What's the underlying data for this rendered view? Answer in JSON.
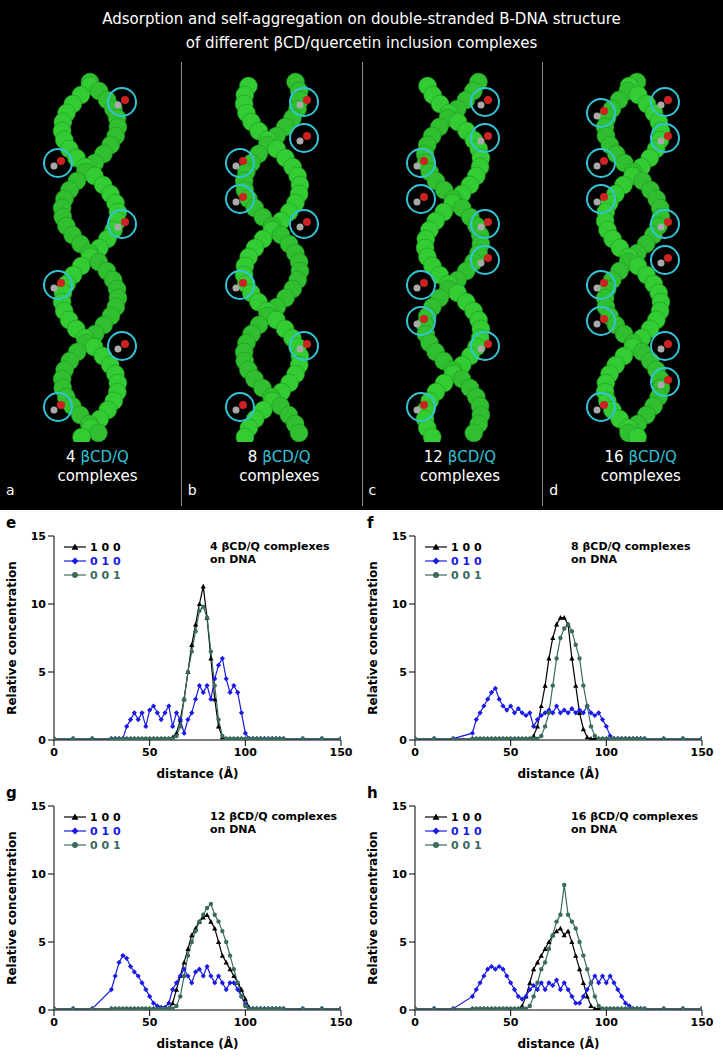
{
  "header": {
    "title": [
      "Adsorption and self-aggregation on double-stranded B-DNA structure",
      "of different βCD/quercetin inclusion complexes"
    ]
  },
  "panels": [
    {
      "letter": "a",
      "label": "4 βCD/Q complexes"
    },
    {
      "letter": "b",
      "label": "8 βCD/Q complexes"
    },
    {
      "letter": "c",
      "label": "12 βCD/Q complexes"
    },
    {
      "letter": "d",
      "label": "16 βCD/Q complexes"
    }
  ],
  "chart_data": [
    {
      "type": "line",
      "panel": "e",
      "title": "4 βCD/Q complexes on DNA",
      "x_label": "distance (Å)",
      "y_label": "Relative concentration",
      "xlim": [
        0,
        150
      ],
      "ylim": [
        0,
        15
      ],
      "xticks": [
        0,
        50,
        100,
        150
      ],
      "yticks": [
        0,
        5,
        10,
        15
      ],
      "grid": false,
      "legend": "top-left",
      "x": [
        0,
        10,
        20,
        30,
        32,
        34,
        36,
        38,
        40,
        42,
        44,
        46,
        48,
        50,
        52,
        54,
        56,
        58,
        60,
        62,
        64,
        66,
        68,
        70,
        72,
        74,
        76,
        78,
        80,
        82,
        84,
        86,
        88,
        90,
        92,
        94,
        96,
        98,
        100,
        102,
        104,
        106,
        108,
        110,
        112,
        114,
        116,
        118,
        120,
        130,
        140,
        150
      ],
      "series": [
        {
          "name": "1 0 0",
          "color": "#000000",
          "marker": "triangle",
          "values": [
            0.1,
            0.1,
            0.1,
            0.1,
            0.1,
            0.1,
            0.1,
            0.1,
            0.1,
            0.1,
            0.1,
            0.1,
            0.1,
            0.1,
            0.1,
            0.1,
            0.1,
            0.1,
            0.1,
            0.2,
            0.5,
            1.5,
            3,
            5,
            7,
            8.5,
            10,
            11.3,
            9,
            6,
            3,
            1,
            0.2,
            0.1,
            0.1,
            0.1,
            0.1,
            0.1,
            0.1,
            0.1,
            0.1,
            0.1,
            0.1,
            0.1,
            0.1,
            0.1,
            0.1,
            0.1,
            0.1,
            0.1,
            0.1,
            0.1
          ]
        },
        {
          "name": "0 1 0",
          "color": "#1a1ae6",
          "marker": "diamond",
          "values": [
            0.1,
            0.1,
            0.1,
            0.1,
            0.1,
            0.1,
            0.1,
            1,
            1.5,
            2,
            1.5,
            2,
            1,
            2.2,
            2.5,
            2,
            1.5,
            2,
            2.5,
            1,
            2,
            1.5,
            0.5,
            1.5,
            2,
            3,
            4,
            3.5,
            4,
            3,
            4.5,
            5.5,
            6,
            4.5,
            3.5,
            4,
            3.5,
            2,
            0.5,
            0.1,
            0.1,
            0.1,
            0.1,
            0.1,
            0.1,
            0.1,
            0.1,
            0.1,
            0.1,
            0.1,
            0.1,
            0.1
          ]
        },
        {
          "name": "0 0 1",
          "color": "#3a6b5e",
          "marker": "circle",
          "values": [
            0.1,
            0.1,
            0.1,
            0.1,
            0.1,
            0.1,
            0.1,
            0.1,
            0.1,
            0.1,
            0.1,
            0.1,
            0.1,
            0.1,
            0.1,
            0.1,
            0.1,
            0.1,
            0.1,
            0.1,
            0.3,
            1,
            3,
            5,
            6.5,
            8,
            9.5,
            9.8,
            9,
            6.5,
            4,
            1.5,
            0.3,
            0.1,
            0.1,
            0.1,
            0.1,
            0.1,
            0.1,
            0.1,
            0.1,
            0.1,
            0.1,
            0.1,
            0.1,
            0.1,
            0.1,
            0.1,
            0.1,
            0.1,
            0.1,
            0.1
          ]
        }
      ]
    },
    {
      "type": "line",
      "panel": "f",
      "title": "8 βCD/Q complexes on DNA",
      "x_label": "distance (Å)",
      "y_label": "Relative concentration",
      "xlim": [
        0,
        150
      ],
      "ylim": [
        0,
        15
      ],
      "xticks": [
        0,
        50,
        100,
        150
      ],
      "yticks": [
        0,
        5,
        10,
        15
      ],
      "grid": false,
      "legend": "top-left",
      "x": [
        0,
        10,
        20,
        30,
        32,
        34,
        36,
        38,
        40,
        42,
        44,
        46,
        48,
        50,
        52,
        54,
        56,
        58,
        60,
        62,
        64,
        66,
        68,
        70,
        72,
        74,
        76,
        78,
        80,
        82,
        84,
        86,
        88,
        90,
        92,
        94,
        96,
        98,
        100,
        102,
        104,
        106,
        108,
        110,
        112,
        114,
        116,
        118,
        120,
        130,
        140,
        150
      ],
      "series": [
        {
          "name": "1 0 0",
          "color": "#000000",
          "marker": "triangle",
          "values": [
            0.1,
            0.1,
            0.1,
            0.1,
            0.1,
            0.1,
            0.1,
            0.1,
            0.1,
            0.1,
            0.1,
            0.1,
            0.1,
            0.1,
            0.1,
            0.1,
            0.1,
            0.1,
            0.1,
            0.3,
            1,
            2.5,
            4,
            6,
            7.5,
            8.5,
            9,
            9,
            8.5,
            6,
            4,
            2,
            0.8,
            0.2,
            0.1,
            0.1,
            0.1,
            0.1,
            0.1,
            0.1,
            0.1,
            0.1,
            0.1,
            0.1,
            0.1,
            0.1,
            0.1,
            0.1,
            0.1,
            0.1,
            0.1,
            0.1
          ]
        },
        {
          "name": "0 1 0",
          "color": "#1a1ae6",
          "marker": "diamond",
          "values": [
            0.1,
            0.1,
            0.1,
            0.5,
            1.5,
            2,
            2.5,
            3,
            3.5,
            3.8,
            3,
            2.5,
            2.2,
            2.5,
            2,
            2.3,
            2,
            1.8,
            2,
            1,
            1.5,
            1.8,
            2,
            2.2,
            2,
            2.5,
            2,
            2.2,
            2,
            2.3,
            2,
            2.2,
            2,
            2.5,
            2,
            1.8,
            2,
            1.5,
            1,
            0.3,
            0.1,
            0.1,
            0.1,
            0.1,
            0.1,
            0.1,
            0.1,
            0.1,
            0.1,
            0.1,
            0.1,
            0.1
          ]
        },
        {
          "name": "0 0 1",
          "color": "#3a6b5e",
          "marker": "circle",
          "values": [
            0.1,
            0.1,
            0.1,
            0.1,
            0.1,
            0.1,
            0.1,
            0.1,
            0.1,
            0.1,
            0.1,
            0.1,
            0.1,
            0.1,
            0.1,
            0.1,
            0.1,
            0.1,
            0.1,
            0.1,
            0.1,
            0.3,
            1,
            2,
            4,
            6,
            7.5,
            8.2,
            8.5,
            8,
            7,
            6,
            4,
            2.5,
            1,
            0.3,
            0.1,
            0.1,
            0.1,
            0.1,
            0.1,
            0.1,
            0.1,
            0.1,
            0.1,
            0.1,
            0.1,
            0.1,
            0.1,
            0.1,
            0.1,
            0.1
          ]
        }
      ]
    },
    {
      "type": "line",
      "panel": "g",
      "title": "12 βCD/Q complexes on DNA",
      "x_label": "distance (Å)",
      "y_label": "Relative concentration",
      "xlim": [
        0,
        150
      ],
      "ylim": [
        0,
        15
      ],
      "xticks": [
        0,
        50,
        100,
        150
      ],
      "yticks": [
        0,
        5,
        10,
        15
      ],
      "grid": false,
      "legend": "top-left",
      "x": [
        0,
        10,
        20,
        30,
        32,
        34,
        36,
        38,
        40,
        42,
        44,
        46,
        48,
        50,
        52,
        54,
        56,
        58,
        60,
        62,
        64,
        66,
        68,
        70,
        72,
        74,
        76,
        78,
        80,
        82,
        84,
        86,
        88,
        90,
        92,
        94,
        96,
        98,
        100,
        102,
        104,
        106,
        108,
        110,
        112,
        114,
        116,
        118,
        120,
        130,
        140,
        150
      ],
      "series": [
        {
          "name": "1 0 0",
          "color": "#000000",
          "marker": "triangle",
          "values": [
            0.1,
            0.1,
            0.1,
            0.1,
            0.1,
            0.1,
            0.1,
            0.1,
            0.1,
            0.1,
            0.1,
            0.1,
            0.1,
            0.1,
            0.1,
            0.1,
            0.1,
            0.1,
            0.1,
            0.5,
            1.5,
            2.5,
            3.5,
            4.5,
            5.5,
            6,
            6.5,
            6.8,
            7,
            6.5,
            6,
            5,
            4,
            3.5,
            3,
            2.5,
            2,
            1.5,
            0.8,
            0.2,
            0.1,
            0.1,
            0.1,
            0.1,
            0.1,
            0.1,
            0.1,
            0.1,
            0.1,
            0.1,
            0.1,
            0.1
          ]
        },
        {
          "name": "0 1 0",
          "color": "#1a1ae6",
          "marker": "diamond",
          "values": [
            0.1,
            0.1,
            0.1,
            1.5,
            2.5,
            3.5,
            4,
            3.8,
            3.2,
            2.8,
            2.5,
            2,
            1.5,
            1,
            0.5,
            0.3,
            0.2,
            0.2,
            0.5,
            1.5,
            2,
            2.5,
            3,
            2.5,
            2,
            2.8,
            3,
            2.5,
            3.2,
            2.5,
            2,
            2.5,
            2,
            1.5,
            2,
            2,
            1.5,
            1,
            0.4,
            0.1,
            0.1,
            0.1,
            0.1,
            0.1,
            0.1,
            0.1,
            0.1,
            0.1,
            0.1,
            0.1,
            0.1,
            0.1
          ]
        },
        {
          "name": "0 0 1",
          "color": "#3a6b5e",
          "marker": "circle",
          "values": [
            0.1,
            0.1,
            0.1,
            0.1,
            0.1,
            0.1,
            0.1,
            0.1,
            0.1,
            0.1,
            0.1,
            0.1,
            0.1,
            0.1,
            0.1,
            0.1,
            0.1,
            0.1,
            0.1,
            0.1,
            0.3,
            1,
            2.5,
            4,
            5,
            5.8,
            6.5,
            7,
            7.5,
            7.8,
            7,
            6.5,
            5.8,
            5,
            4,
            3,
            2,
            1,
            0.3,
            0.1,
            0.1,
            0.1,
            0.1,
            0.1,
            0.1,
            0.1,
            0.1,
            0.1,
            0.1,
            0.1,
            0.1,
            0.1
          ]
        }
      ]
    },
    {
      "type": "line",
      "panel": "h",
      "title": "16 βCD/Q complexes on DNA",
      "x_label": "distance (Å)",
      "y_label": "Relative concentration",
      "xlim": [
        0,
        150
      ],
      "ylim": [
        0,
        15
      ],
      "xticks": [
        0,
        50,
        100,
        150
      ],
      "yticks": [
        0,
        5,
        10,
        15
      ],
      "grid": false,
      "legend": "top-left",
      "x": [
        0,
        10,
        20,
        30,
        32,
        34,
        36,
        38,
        40,
        42,
        44,
        46,
        48,
        50,
        52,
        54,
        56,
        58,
        60,
        62,
        64,
        66,
        68,
        70,
        72,
        74,
        76,
        78,
        80,
        82,
        84,
        86,
        88,
        90,
        92,
        94,
        96,
        98,
        100,
        102,
        104,
        106,
        108,
        110,
        112,
        114,
        116,
        118,
        120,
        130,
        140,
        150
      ],
      "series": [
        {
          "name": "1 0 0",
          "color": "#000000",
          "marker": "triangle",
          "values": [
            0.1,
            0.1,
            0.1,
            0.1,
            0.1,
            0.1,
            0.1,
            0.1,
            0.1,
            0.1,
            0.1,
            0.1,
            0.1,
            0.1,
            0.1,
            0.1,
            0.3,
            1,
            2,
            3,
            3.5,
            4,
            4.5,
            5,
            5.5,
            5.8,
            6,
            5.5,
            5.8,
            5,
            4,
            3,
            2,
            1,
            0.3,
            0.1,
            0.1,
            0.1,
            0.1,
            0.1,
            0.1,
            0.1,
            0.1,
            0.1,
            0.1,
            0.1,
            0.1,
            0.1,
            0.1,
            0.1,
            0.1,
            0.1
          ]
        },
        {
          "name": "0 1 0",
          "color": "#1a1ae6",
          "marker": "diamond",
          "values": [
            0.1,
            0.1,
            0.1,
            1,
            1.5,
            2,
            2.5,
            3,
            3.2,
            3,
            3.2,
            3,
            2.5,
            2,
            1.5,
            1,
            0.8,
            1,
            1.5,
            1.8,
            1.5,
            2,
            1.5,
            2,
            1.8,
            2.2,
            1.5,
            2,
            1.5,
            1,
            0.5,
            0.5,
            1,
            1.5,
            2,
            2.5,
            2,
            2.5,
            2,
            2.5,
            2,
            1.5,
            1,
            0.5,
            0.3,
            0.1,
            0.1,
            0.1,
            0.1,
            0.1,
            0.1,
            0.1
          ]
        },
        {
          "name": "0 0 1",
          "color": "#3a6b5e",
          "marker": "circle",
          "values": [
            0.1,
            0.1,
            0.1,
            0.1,
            0.1,
            0.1,
            0.1,
            0.1,
            0.1,
            0.1,
            0.1,
            0.1,
            0.1,
            0.1,
            0.1,
            0.1,
            0.1,
            0.1,
            0.3,
            1,
            2,
            3,
            3.5,
            4.5,
            5.5,
            6.5,
            7,
            9.2,
            7,
            6.5,
            6,
            5,
            4,
            3,
            2,
            1,
            0.3,
            0.1,
            0.1,
            0.1,
            0.1,
            0.1,
            0.1,
            0.1,
            0.1,
            0.1,
            0.1,
            0.1,
            0.1,
            0.1,
            0.1,
            0.1
          ]
        }
      ]
    }
  ]
}
